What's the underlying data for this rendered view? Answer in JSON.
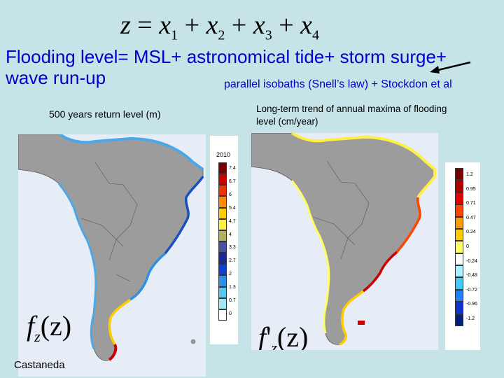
{
  "formula": {
    "z": "z",
    "eq": "=",
    "x": "x",
    "plus": "+",
    "sub1": "1",
    "sub2": "2",
    "sub3": "3",
    "sub4": "4"
  },
  "heading": {
    "line1": "Flooding level= MSL+ astronomical tide+ storm surge+",
    "line2": "wave run-up",
    "note": "parallel isobaths (Snell’s law) + Stockdon et al"
  },
  "left_panel": {
    "caption": "500 years return level (m)",
    "func_f": "f",
    "func_sub": "z",
    "func_arg": "(z)",
    "colorbar": {
      "year": "2010",
      "ticks": [
        "7.4",
        "6.7",
        "6",
        "5.4",
        "4.7",
        "4",
        "3.3",
        "2.7",
        "2",
        "1.3",
        "0.7",
        "0"
      ],
      "colors": [
        "#7a0000",
        "#cc0000",
        "#ee3300",
        "#ff8c00",
        "#ffcc00",
        "#ffee44",
        "#b0b060",
        "#4a4fa0",
        "#1a2a90",
        "#1040d0",
        "#2f8fe8",
        "#55c8f0",
        "#9fe6f6",
        "#ffffff"
      ]
    }
  },
  "right_panel": {
    "caption": "Long-term trend of annual maxima of flooding level (cm/year)",
    "func_f": "f",
    "func_prime": "'",
    "func_sub": "z",
    "func_arg": "(z)",
    "colorbar": {
      "ticks": [
        "1.2",
        "0.95",
        "0.71",
        "0.47",
        "0.24",
        "0",
        "-0.24",
        "-0.48",
        "-0.72",
        "-0.96",
        "-1.2"
      ],
      "colors": [
        "#7a0000",
        "#b00000",
        "#e60000",
        "#ff4400",
        "#ff9900",
        "#ffcc00",
        "#ffff66",
        "#ffffff",
        "#aaf0ff",
        "#40c8ff",
        "#2080ff",
        "#1030d0",
        "#001e80"
      ]
    }
  },
  "credit": "Castaneda"
}
